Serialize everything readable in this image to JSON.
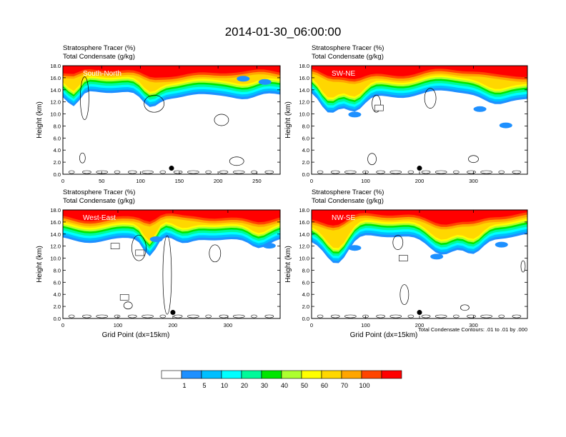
{
  "figure": {
    "title": "2014-01-30_06:00:00",
    "footnote": "Total Condensate Contours: .01 to .01 by .000"
  },
  "panels": [
    {
      "line1": "Stratosphere Tracer   (%)",
      "line2": "Total Condensate   (g/kg)",
      "label": "South-North",
      "ylabel": "Height (km)",
      "xlabel": "",
      "xmax": 280,
      "xticks": [
        0,
        50,
        100,
        150,
        200,
        250
      ],
      "marker_x": 140,
      "boxes": []
    },
    {
      "line1": "Stratosphere Tracer   (%)",
      "line2": "Total Condensate   (g/kg)",
      "label": "SW-NE",
      "ylabel": "Height (km)",
      "xlabel": "",
      "xmax": 400,
      "xticks": [
        0,
        100,
        200,
        300
      ],
      "marker_x": 200,
      "boxes": [
        {
          "x": 125,
          "y": 11.0
        }
      ]
    },
    {
      "line1": "Stratosphere Tracer   (%)",
      "line2": "Total Condensate   (g/kg)",
      "label": "West-East",
      "ylabel": "Height (km)",
      "xlabel": "Grid Point (dx=15km)",
      "xmax": 395,
      "xticks": [
        0,
        100,
        200,
        300
      ],
      "marker_x": 200,
      "boxes": [
        {
          "x": 95,
          "y": 12.0
        },
        {
          "x": 140,
          "y": 10.9
        },
        {
          "x": 112,
          "y": 3.5
        }
      ]
    },
    {
      "line1": "Stratosphere Tracer   (%)",
      "line2": "Total Condensate   (g/kg)",
      "label": "NW-SE",
      "ylabel": "Height (km)",
      "xlabel": "Grid Point (dx=15km)",
      "xmax": 400,
      "xticks": [
        0,
        100,
        200,
        300
      ],
      "marker_x": 200,
      "boxes": [
        {
          "x": 170,
          "y": 10.0
        }
      ]
    }
  ],
  "colorbar": {
    "labels": [
      "1",
      "5",
      "10",
      "20",
      "30",
      "40",
      "50",
      "60",
      "70",
      "100"
    ],
    "colors": [
      "#ffffff",
      "#1e90ff",
      "#00bfff",
      "#00ffff",
      "#00fa9a",
      "#00e600",
      "#adff2f",
      "#ffff00",
      "#ffd700",
      "#ffa500",
      "#ff4500",
      "#ff0000"
    ]
  },
  "chart_data": {
    "type": "heatmap",
    "title": "2014-01-30_06:00:00",
    "ylabel": "Height (km)",
    "xlabel": "Grid Point (dx=15km)",
    "ylim": [
      0,
      18
    ],
    "yticks": [
      0,
      2,
      4,
      6,
      8,
      10,
      12,
      14,
      16,
      18
    ],
    "yticklabels": [
      "0.0",
      "2.0",
      "4.0",
      "6.0",
      "8.0",
      "10.0",
      "12.0",
      "14.0",
      "16.0",
      "18.0"
    ],
    "fill_variable": "Stratosphere Tracer (%)",
    "contour_variable": "Total Condensate (g/kg)",
    "contour_level": 0.01,
    "levels": [
      1,
      5,
      10,
      20,
      30,
      40,
      50,
      60,
      70,
      100
    ],
    "panels": [
      {
        "label": "South-North",
        "xlim": [
          0,
          280
        ],
        "tracer_top_km": 18,
        "tracer_100_base_km": 16.7,
        "tracer_1_base_km": 14.7
      },
      {
        "label": "SW-NE",
        "xlim": [
          0,
          400
        ],
        "tracer_top_km": 18,
        "tracer_100_base_km": 16.8,
        "tracer_1_base_km": 14.0
      },
      {
        "label": "West-East",
        "xlim": [
          0,
          395
        ],
        "tracer_top_km": 18,
        "tracer_100_base_km": 17.0,
        "tracer_1_base_km": 14.8
      },
      {
        "label": "NW-SE",
        "xlim": [
          0,
          400
        ],
        "tracer_top_km": 18,
        "tracer_100_base_km": 17.2,
        "tracer_1_base_km": 14.6
      }
    ]
  }
}
